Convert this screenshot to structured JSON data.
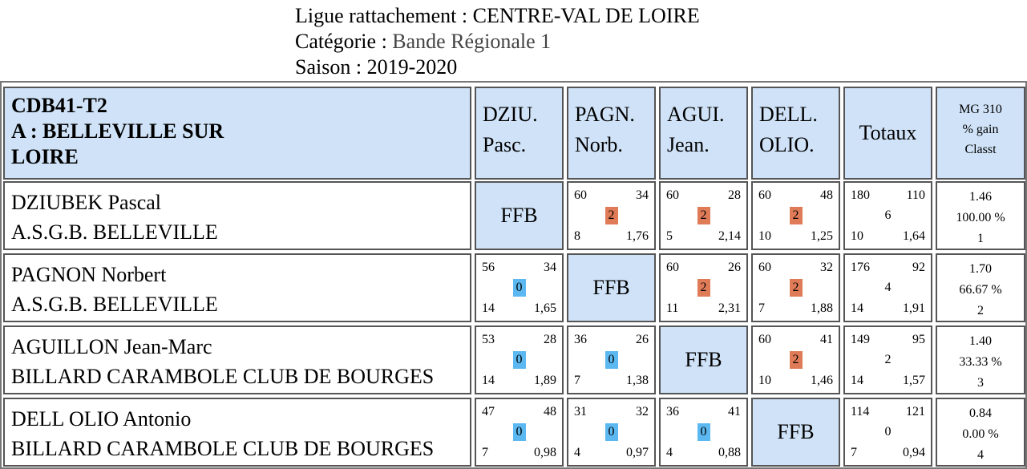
{
  "header": {
    "ligue_label": "Ligue rattachement : ",
    "ligue_value": "CENTRE-VAL DE LOIRE",
    "categorie_label": "Catégorie : ",
    "categorie_value": "Bande Régionale 1",
    "saison_label": "Saison : ",
    "saison_value": "2019-2020"
  },
  "table": {
    "team_code": "CDB41-T2",
    "team_name_line1": "A : BELLEVILLE SUR",
    "team_name_line2": "LOIRE",
    "columns": [
      {
        "line1": "DZIU.",
        "line2": "Pasc."
      },
      {
        "line1": "PAGN.",
        "line2": "Norb."
      },
      {
        "line1": "AGUI.",
        "line2": "Jean."
      },
      {
        "line1": "DELL.",
        "line2": "OLIO."
      }
    ],
    "totals_label": "Totaux",
    "mg_line1": "MG 310",
    "mg_line2": "% gain",
    "mg_line3": "Classt",
    "ffb_label": "FFB",
    "rows": [
      {
        "name": "DZIUBEK Pascal",
        "club": "A.S.G.B. BELLEVILLE",
        "matches": [
          null,
          {
            "tl": "60",
            "tr": "34",
            "pts": "2",
            "result": "win",
            "bl": "8",
            "br": "1,76"
          },
          {
            "tl": "60",
            "tr": "28",
            "pts": "2",
            "result": "win",
            "bl": "5",
            "br": "2,14"
          },
          {
            "tl": "60",
            "tr": "48",
            "pts": "2",
            "result": "win",
            "bl": "10",
            "br": "1,25"
          }
        ],
        "totals": {
          "tl": "180",
          "tr": "110",
          "pts": "6",
          "bl": "10",
          "br": "1,64"
        },
        "stats": {
          "mg": "1.46",
          "pct": "100.00 %",
          "rank": "1"
        }
      },
      {
        "name": "PAGNON Norbert",
        "club": "A.S.G.B. BELLEVILLE",
        "matches": [
          {
            "tl": "56",
            "tr": "34",
            "pts": "0",
            "result": "loss",
            "bl": "14",
            "br": "1,65"
          },
          null,
          {
            "tl": "60",
            "tr": "26",
            "pts": "2",
            "result": "win",
            "bl": "11",
            "br": "2,31"
          },
          {
            "tl": "60",
            "tr": "32",
            "pts": "2",
            "result": "win",
            "bl": "7",
            "br": "1,88"
          }
        ],
        "totals": {
          "tl": "176",
          "tr": "92",
          "pts": "4",
          "bl": "14",
          "br": "1,91"
        },
        "stats": {
          "mg": "1.70",
          "pct": "66.67 %",
          "rank": "2"
        }
      },
      {
        "name": "AGUILLON Jean-Marc",
        "club": "BILLARD CARAMBOLE CLUB DE BOURGES",
        "matches": [
          {
            "tl": "53",
            "tr": "28",
            "pts": "0",
            "result": "loss",
            "bl": "14",
            "br": "1,89"
          },
          {
            "tl": "36",
            "tr": "26",
            "pts": "0",
            "result": "loss",
            "bl": "7",
            "br": "1,38"
          },
          null,
          {
            "tl": "60",
            "tr": "41",
            "pts": "2",
            "result": "win",
            "bl": "10",
            "br": "1,46"
          }
        ],
        "totals": {
          "tl": "149",
          "tr": "95",
          "pts": "2",
          "bl": "14",
          "br": "1,57"
        },
        "stats": {
          "mg": "1.40",
          "pct": "33.33 %",
          "rank": "3"
        }
      },
      {
        "name": "DELL OLIO Antonio",
        "club": "BILLARD CARAMBOLE CLUB DE BOURGES",
        "matches": [
          {
            "tl": "47",
            "tr": "48",
            "pts": "0",
            "result": "loss",
            "bl": "7",
            "br": "0,98"
          },
          {
            "tl": "31",
            "tr": "32",
            "pts": "0",
            "result": "loss",
            "bl": "4",
            "br": "0,97"
          },
          {
            "tl": "36",
            "tr": "41",
            "pts": "0",
            "result": "loss",
            "bl": "4",
            "br": "0,88"
          },
          null
        ],
        "totals": {
          "tl": "114",
          "tr": "121",
          "pts": "0",
          "bl": "7",
          "br": "0,94"
        },
        "stats": {
          "mg": "0.84",
          "pct": "0.00 %",
          "rank": "4"
        }
      }
    ],
    "colors": {
      "win": "#e07b58",
      "loss": "#5bb8f0",
      "header_bg": "#cfe2f7"
    }
  }
}
